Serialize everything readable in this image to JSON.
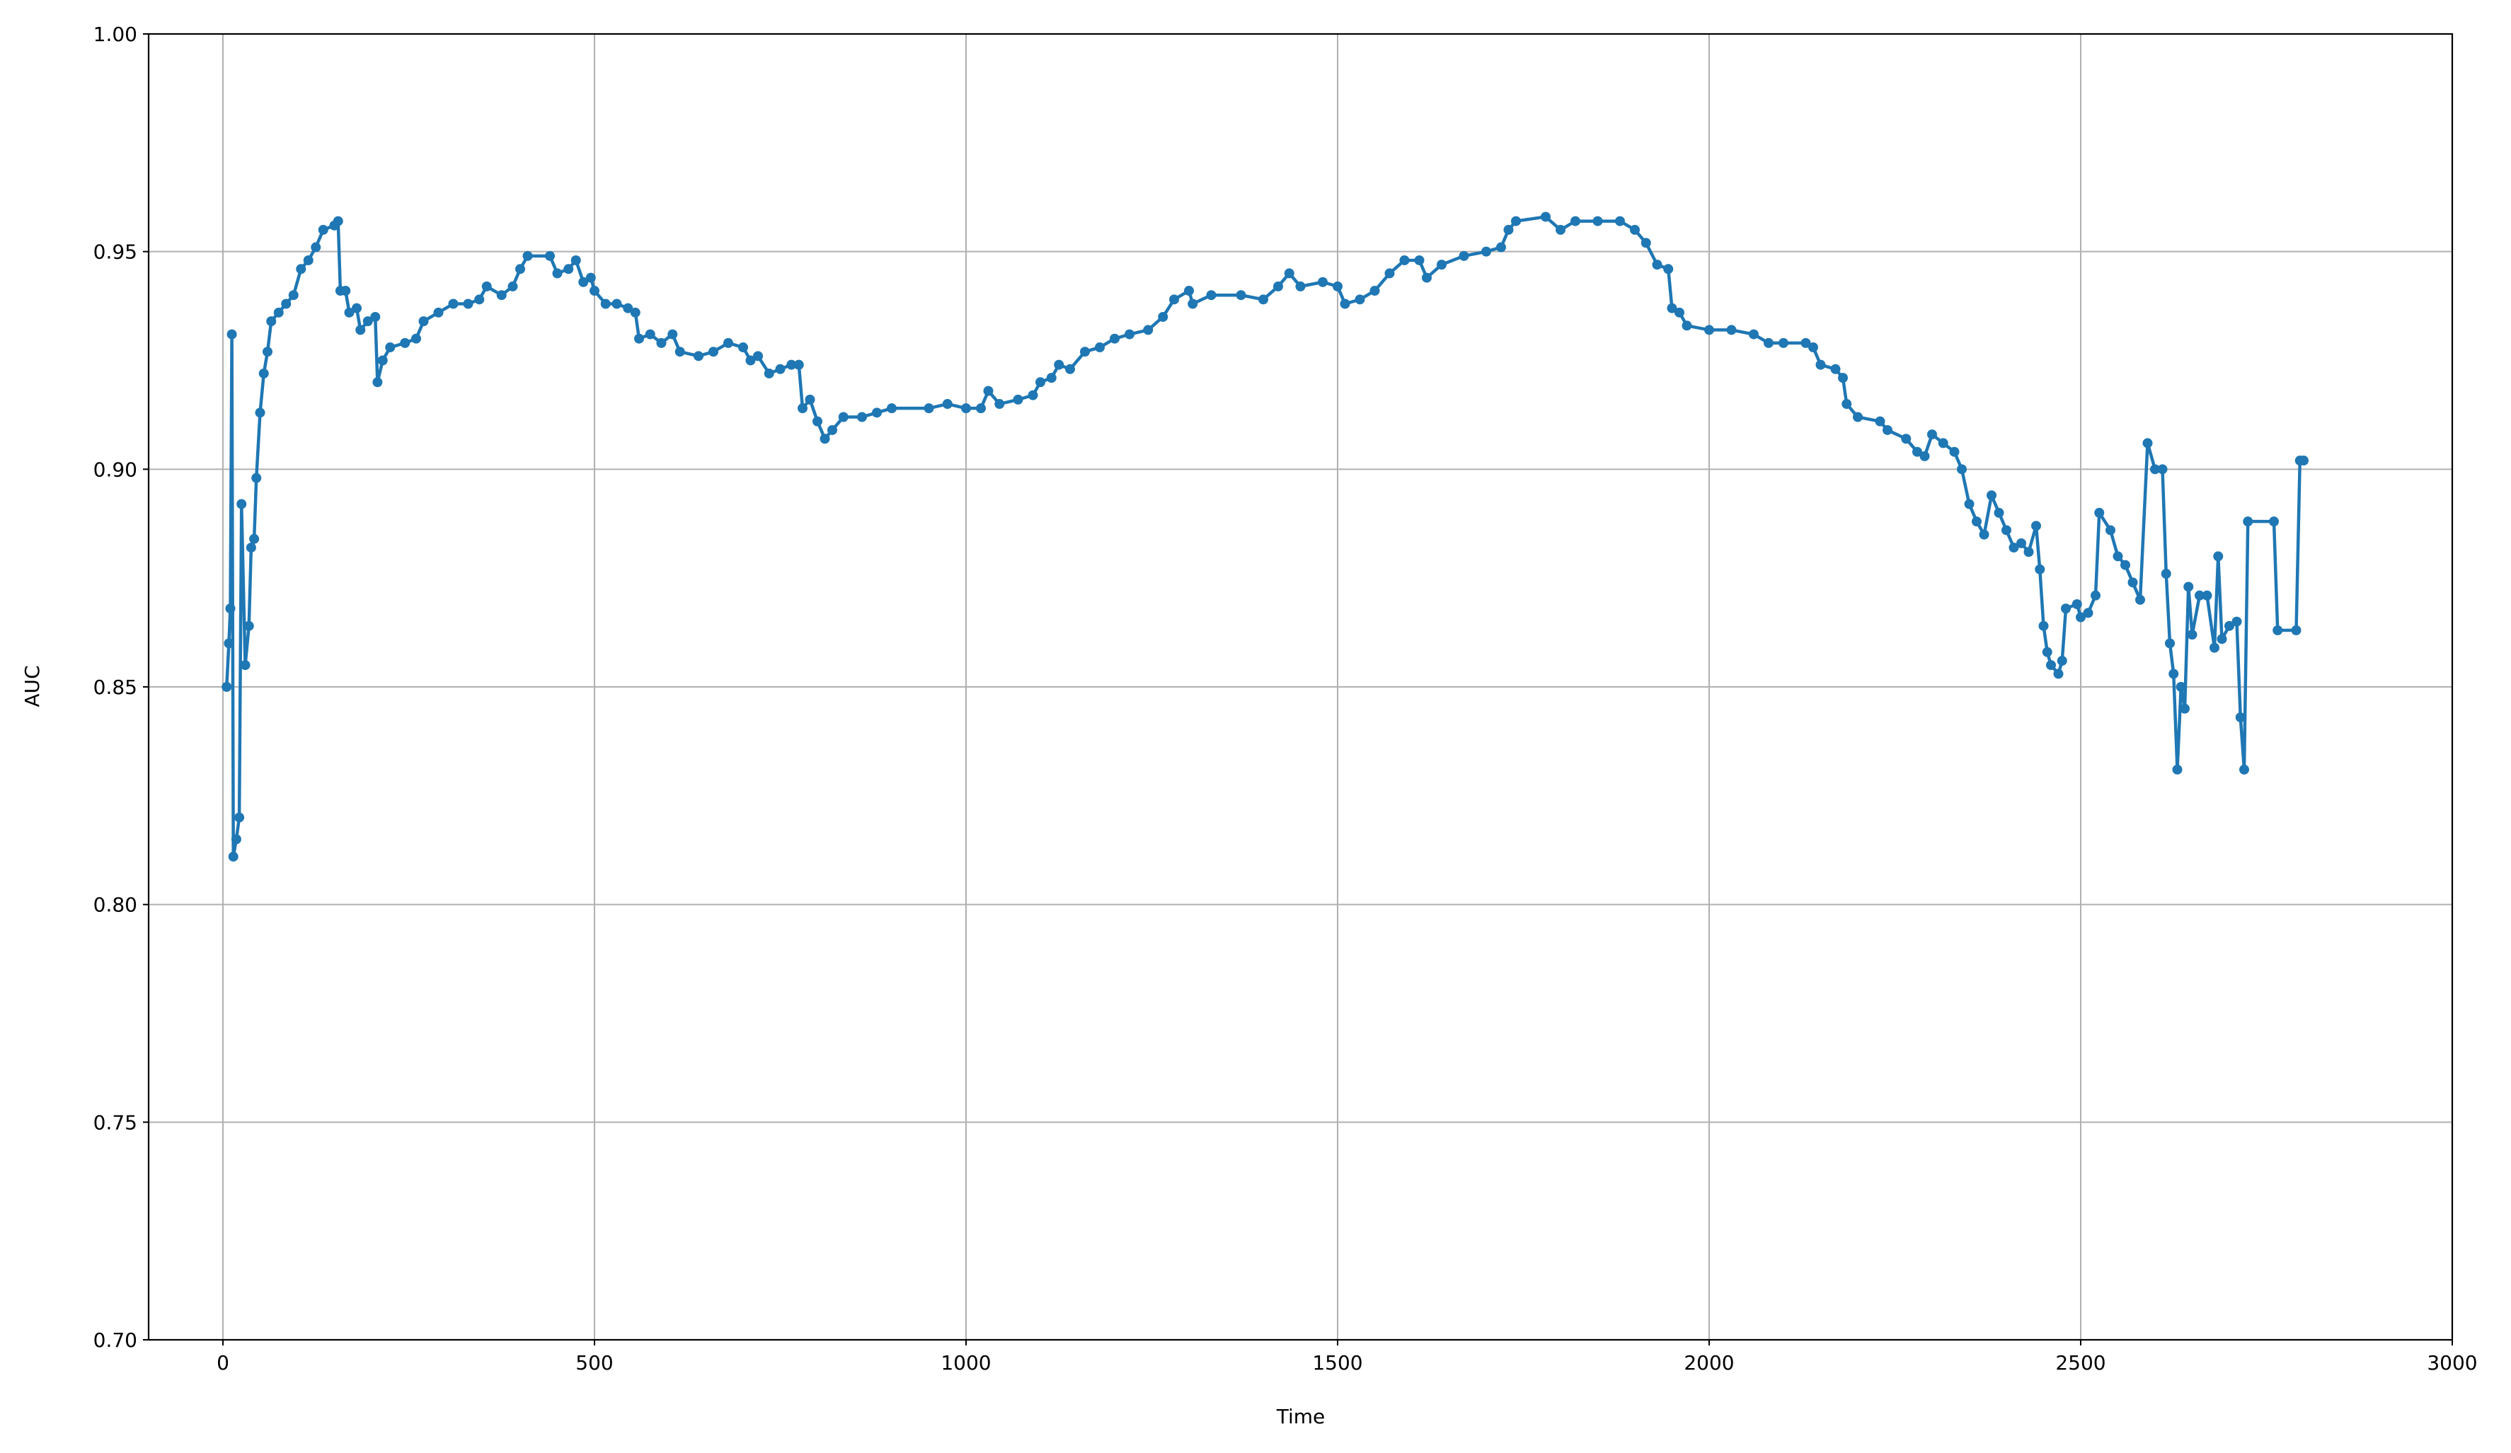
{
  "chart_data": {
    "type": "line",
    "xlabel": "Time",
    "ylabel": "AUC",
    "xlim": [
      -100,
      3000
    ],
    "xticks": [
      0,
      500,
      1000,
      1500,
      2000,
      2500,
      3000
    ],
    "ylim": [
      0.7,
      1.0
    ],
    "yticks": [
      {
        "value": 0.7,
        "label": "0.70"
      },
      0.75,
      {
        "value": 0.8,
        "label": "0.80"
      },
      0.85,
      {
        "value": 0.9,
        "label": "0.90"
      },
      0.95,
      {
        "value": 1.0,
        "label": "1.00"
      }
    ],
    "grid": true,
    "series": [
      {
        "color": "#1f77b4",
        "x": [
          5,
          8,
          10,
          12,
          14,
          18,
          22,
          25,
          30,
          35,
          38,
          42,
          45,
          50,
          55,
          60,
          65,
          75,
          85,
          95,
          105,
          115,
          125,
          135,
          150,
          155,
          158,
          165,
          170,
          180,
          185,
          195,
          205,
          208,
          215,
          225,
          245,
          260,
          270,
          290,
          310,
          330,
          345,
          355,
          375,
          390,
          400,
          410,
          440,
          450,
          465,
          475,
          485,
          495,
          500,
          515,
          530,
          545,
          555,
          560,
          575,
          590,
          605,
          615,
          640,
          660,
          680,
          700,
          710,
          720,
          735,
          750,
          765,
          775,
          780,
          790,
          800,
          810,
          820,
          835,
          860,
          880,
          900,
          950,
          975,
          1000,
          1020,
          1030,
          1045,
          1070,
          1090,
          1100,
          1115,
          1125,
          1140,
          1160,
          1180,
          1200,
          1220,
          1245,
          1265,
          1280,
          1300,
          1305,
          1330,
          1370,
          1400,
          1420,
          1435,
          1450,
          1480,
          1500,
          1510,
          1530,
          1550,
          1570,
          1590,
          1610,
          1620,
          1640,
          1670,
          1700,
          1720,
          1730,
          1740,
          1780,
          1800,
          1820,
          1850,
          1880,
          1900,
          1915,
          1930,
          1945,
          1950,
          1960,
          1970,
          2000,
          2030,
          2060,
          2080,
          2100,
          2130,
          2140,
          2150,
          2170,
          2180,
          2185,
          2200,
          2230,
          2240,
          2265,
          2280,
          2290,
          2300,
          2315,
          2330,
          2340,
          2350,
          2360,
          2370,
          2380,
          2390,
          2400,
          2410,
          2420,
          2430,
          2440,
          2445,
          2450,
          2455,
          2460,
          2470,
          2475,
          2480,
          2495,
          2500,
          2510,
          2520,
          2525,
          2540,
          2550,
          2560,
          2570,
          2580,
          2590,
          2600,
          2610,
          2615,
          2620,
          2625,
          2630,
          2635,
          2640,
          2645,
          2650,
          2660,
          2670,
          2680,
          2685,
          2690,
          2700,
          2710,
          2715,
          2720,
          2725,
          2760,
          2765,
          2790,
          2795,
          2800
        ],
        "values": [
          0.85,
          0.86,
          0.868,
          0.931,
          0.811,
          0.815,
          0.82,
          0.892,
          0.855,
          0.864,
          0.882,
          0.884,
          0.898,
          0.913,
          0.922,
          0.927,
          0.934,
          0.936,
          0.938,
          0.94,
          0.946,
          0.948,
          0.951,
          0.955,
          0.956,
          0.957,
          0.941,
          0.941,
          0.936,
          0.937,
          0.932,
          0.934,
          0.935,
          0.92,
          0.925,
          0.928,
          0.929,
          0.93,
          0.934,
          0.936,
          0.938,
          0.938,
          0.939,
          0.942,
          0.94,
          0.942,
          0.946,
          0.949,
          0.949,
          0.945,
          0.946,
          0.948,
          0.943,
          0.944,
          0.941,
          0.938,
          0.938,
          0.937,
          0.936,
          0.93,
          0.931,
          0.929,
          0.931,
          0.927,
          0.926,
          0.927,
          0.929,
          0.928,
          0.925,
          0.926,
          0.922,
          0.923,
          0.924,
          0.924,
          0.914,
          0.916,
          0.911,
          0.907,
          0.909,
          0.912,
          0.912,
          0.913,
          0.914,
          0.914,
          0.915,
          0.914,
          0.914,
          0.918,
          0.915,
          0.916,
          0.917,
          0.92,
          0.921,
          0.924,
          0.923,
          0.927,
          0.928,
          0.93,
          0.931,
          0.932,
          0.935,
          0.939,
          0.941,
          0.938,
          0.94,
          0.94,
          0.939,
          0.942,
          0.945,
          0.942,
          0.943,
          0.942,
          0.938,
          0.939,
          0.941,
          0.945,
          0.948,
          0.948,
          0.944,
          0.947,
          0.949,
          0.95,
          0.951,
          0.955,
          0.957,
          0.958,
          0.955,
          0.957,
          0.957,
          0.957,
          0.955,
          0.952,
          0.947,
          0.946,
          0.937,
          0.936,
          0.933,
          0.932,
          0.932,
          0.931,
          0.929,
          0.929,
          0.929,
          0.928,
          0.924,
          0.923,
          0.921,
          0.915,
          0.912,
          0.911,
          0.909,
          0.907,
          0.904,
          0.903,
          0.908,
          0.906,
          0.904,
          0.9,
          0.892,
          0.888,
          0.885,
          0.894,
          0.89,
          0.886,
          0.882,
          0.883,
          0.881,
          0.887,
          0.877,
          0.864,
          0.858,
          0.855,
          0.853,
          0.856,
          0.868,
          0.869,
          0.866,
          0.867,
          0.871,
          0.89,
          0.886,
          0.88,
          0.878,
          0.874,
          0.87,
          0.906,
          0.9,
          0.9,
          0.876,
          0.86,
          0.853,
          0.831,
          0.85,
          0.845,
          0.873,
          0.862,
          0.871,
          0.871,
          0.859,
          0.88,
          0.861,
          0.864,
          0.865,
          0.843,
          0.831,
          0.888,
          0.888,
          0.863,
          0.863,
          0.902,
          0.902
        ]
      }
    ]
  }
}
